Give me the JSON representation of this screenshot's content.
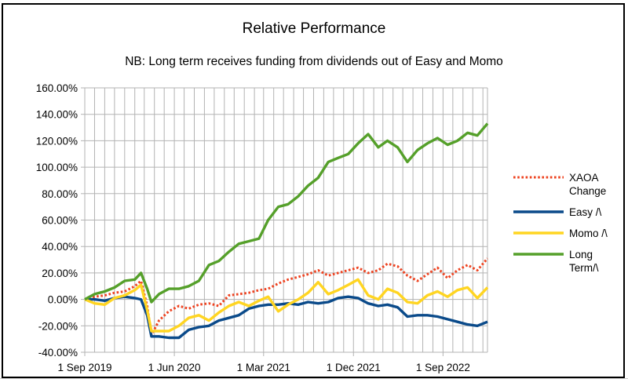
{
  "chart_data": {
    "type": "line",
    "title": "Relative Performance",
    "subtitle": "NB: Long term receives funding from dividends out of Easy and Momo",
    "xlabel": "",
    "ylabel": "",
    "x_ticks": [
      "1 Sep 2019",
      "1 Jun 2020",
      "1 Mar 2021",
      "1 Dec 2021",
      "1 Sep 2022"
    ],
    "y_ticks": [
      "160.00%",
      "140.00%",
      "120.00%",
      "100.00%",
      "80.00%",
      "60.00%",
      "40.00%",
      "20.00%",
      "0.00%",
      "-20.00%",
      "-40.00%"
    ],
    "ylim": [
      -40,
      160
    ],
    "xlim": [
      "2019-09-01",
      "2023-01-15"
    ],
    "grid": true,
    "legend_position": "right",
    "series": [
      {
        "name": "XAOA Change",
        "color": "#ee4422",
        "style": "dotted",
        "points": [
          [
            "2019-09-01",
            0
          ],
          [
            "2019-10-01",
            2
          ],
          [
            "2019-11-01",
            3
          ],
          [
            "2019-12-01",
            5
          ],
          [
            "2020-01-01",
            6
          ],
          [
            "2020-02-01",
            10
          ],
          [
            "2020-02-20",
            14
          ],
          [
            "2020-03-10",
            -5
          ],
          [
            "2020-03-23",
            -27
          ],
          [
            "2020-04-15",
            -16
          ],
          [
            "2020-05-15",
            -9
          ],
          [
            "2020-06-15",
            -5
          ],
          [
            "2020-07-15",
            -7
          ],
          [
            "2020-08-15",
            -4
          ],
          [
            "2020-09-15",
            -3
          ],
          [
            "2020-10-15",
            -5
          ],
          [
            "2020-11-15",
            3
          ],
          [
            "2020-12-15",
            4
          ],
          [
            "2021-01-15",
            5
          ],
          [
            "2021-02-15",
            7
          ],
          [
            "2021-03-15",
            8
          ],
          [
            "2021-04-15",
            12
          ],
          [
            "2021-05-15",
            15
          ],
          [
            "2021-06-15",
            17
          ],
          [
            "2021-07-15",
            19
          ],
          [
            "2021-08-15",
            22
          ],
          [
            "2021-09-15",
            18
          ],
          [
            "2021-10-15",
            20
          ],
          [
            "2021-11-15",
            22
          ],
          [
            "2021-12-15",
            24
          ],
          [
            "2022-01-15",
            20
          ],
          [
            "2022-02-15",
            22
          ],
          [
            "2022-03-15",
            27
          ],
          [
            "2022-04-15",
            25
          ],
          [
            "2022-05-15",
            18
          ],
          [
            "2022-06-15",
            14
          ],
          [
            "2022-07-15",
            19
          ],
          [
            "2022-08-15",
            24
          ],
          [
            "2022-09-15",
            16
          ],
          [
            "2022-10-15",
            22
          ],
          [
            "2022-11-15",
            26
          ],
          [
            "2022-12-15",
            22
          ],
          [
            "2023-01-15",
            31
          ]
        ]
      },
      {
        "name": "Easy /\\",
        "color": "#0a4a8a",
        "style": "solid",
        "points": [
          [
            "2019-09-01",
            0
          ],
          [
            "2019-10-01",
            0
          ],
          [
            "2019-11-01",
            -1
          ],
          [
            "2019-12-01",
            1
          ],
          [
            "2020-01-01",
            2
          ],
          [
            "2020-02-01",
            1
          ],
          [
            "2020-02-20",
            0
          ],
          [
            "2020-03-10",
            -12
          ],
          [
            "2020-03-23",
            -28
          ],
          [
            "2020-04-15",
            -28
          ],
          [
            "2020-05-15",
            -29
          ],
          [
            "2020-06-15",
            -29
          ],
          [
            "2020-07-15",
            -23
          ],
          [
            "2020-08-15",
            -21
          ],
          [
            "2020-09-15",
            -20
          ],
          [
            "2020-10-15",
            -16
          ],
          [
            "2020-11-15",
            -14
          ],
          [
            "2020-12-15",
            -12
          ],
          [
            "2021-01-15",
            -7
          ],
          [
            "2021-02-15",
            -5
          ],
          [
            "2021-03-15",
            -4
          ],
          [
            "2021-04-15",
            -4
          ],
          [
            "2021-05-15",
            -3
          ],
          [
            "2021-06-15",
            -4
          ],
          [
            "2021-07-15",
            -2
          ],
          [
            "2021-08-15",
            -3
          ],
          [
            "2021-09-15",
            -2
          ],
          [
            "2021-10-15",
            1
          ],
          [
            "2021-11-15",
            2
          ],
          [
            "2021-12-15",
            1
          ],
          [
            "2022-01-15",
            -3
          ],
          [
            "2022-02-15",
            -5
          ],
          [
            "2022-03-15",
            -4
          ],
          [
            "2022-04-15",
            -6
          ],
          [
            "2022-05-15",
            -13
          ],
          [
            "2022-06-15",
            -12
          ],
          [
            "2022-07-15",
            -12
          ],
          [
            "2022-08-15",
            -13
          ],
          [
            "2022-09-15",
            -15
          ],
          [
            "2022-10-15",
            -17
          ],
          [
            "2022-11-15",
            -19
          ],
          [
            "2022-12-15",
            -20
          ],
          [
            "2023-01-15",
            -17
          ]
        ]
      },
      {
        "name": "Momo /\\",
        "color": "#ffd522",
        "style": "solid",
        "points": [
          [
            "2019-09-01",
            0
          ],
          [
            "2019-10-01",
            -3
          ],
          [
            "2019-11-01",
            -4
          ],
          [
            "2019-12-01",
            1
          ],
          [
            "2020-01-01",
            3
          ],
          [
            "2020-02-01",
            7
          ],
          [
            "2020-02-20",
            11
          ],
          [
            "2020-03-10",
            -8
          ],
          [
            "2020-03-23",
            -24
          ],
          [
            "2020-04-15",
            -24
          ],
          [
            "2020-05-15",
            -24
          ],
          [
            "2020-06-15",
            -20
          ],
          [
            "2020-07-15",
            -14
          ],
          [
            "2020-08-15",
            -12
          ],
          [
            "2020-09-15",
            -16
          ],
          [
            "2020-10-15",
            -10
          ],
          [
            "2020-11-15",
            -5
          ],
          [
            "2020-12-15",
            -2
          ],
          [
            "2021-01-15",
            -5
          ],
          [
            "2021-02-15",
            -1
          ],
          [
            "2021-03-15",
            2
          ],
          [
            "2021-04-15",
            -9
          ],
          [
            "2021-05-15",
            -4
          ],
          [
            "2021-06-15",
            0
          ],
          [
            "2021-07-15",
            5
          ],
          [
            "2021-08-15",
            13
          ],
          [
            "2021-09-15",
            4
          ],
          [
            "2021-10-15",
            7
          ],
          [
            "2021-11-15",
            11
          ],
          [
            "2021-12-15",
            15
          ],
          [
            "2022-01-15",
            3
          ],
          [
            "2022-02-15",
            0
          ],
          [
            "2022-03-15",
            8
          ],
          [
            "2022-04-15",
            5
          ],
          [
            "2022-05-15",
            -2
          ],
          [
            "2022-06-15",
            -3
          ],
          [
            "2022-07-15",
            3
          ],
          [
            "2022-08-15",
            6
          ],
          [
            "2022-09-15",
            2
          ],
          [
            "2022-10-15",
            7
          ],
          [
            "2022-11-15",
            9
          ],
          [
            "2022-12-15",
            1
          ],
          [
            "2023-01-15",
            9
          ]
        ]
      },
      {
        "name": "Long Term/\\",
        "color": "#55a02a",
        "style": "solid",
        "points": [
          [
            "2019-09-01",
            0
          ],
          [
            "2019-10-01",
            4
          ],
          [
            "2019-11-01",
            6
          ],
          [
            "2019-12-01",
            9
          ],
          [
            "2020-01-01",
            14
          ],
          [
            "2020-02-01",
            15
          ],
          [
            "2020-02-20",
            20
          ],
          [
            "2020-03-10",
            8
          ],
          [
            "2020-03-23",
            -2
          ],
          [
            "2020-04-15",
            4
          ],
          [
            "2020-05-15",
            8
          ],
          [
            "2020-06-15",
            8
          ],
          [
            "2020-07-15",
            10
          ],
          [
            "2020-08-15",
            14
          ],
          [
            "2020-09-15",
            26
          ],
          [
            "2020-10-15",
            29
          ],
          [
            "2020-11-15",
            36
          ],
          [
            "2020-12-15",
            42
          ],
          [
            "2021-01-15",
            44
          ],
          [
            "2021-02-15",
            46
          ],
          [
            "2021-03-15",
            60
          ],
          [
            "2021-04-15",
            70
          ],
          [
            "2021-05-15",
            72
          ],
          [
            "2021-06-15",
            78
          ],
          [
            "2021-07-15",
            86
          ],
          [
            "2021-08-15",
            92
          ],
          [
            "2021-09-15",
            104
          ],
          [
            "2021-10-15",
            107
          ],
          [
            "2021-11-15",
            110
          ],
          [
            "2021-12-15",
            118
          ],
          [
            "2022-01-15",
            125
          ],
          [
            "2022-02-15",
            115
          ],
          [
            "2022-03-15",
            120
          ],
          [
            "2022-04-15",
            115
          ],
          [
            "2022-05-15",
            104
          ],
          [
            "2022-06-15",
            113
          ],
          [
            "2022-07-15",
            118
          ],
          [
            "2022-08-15",
            122
          ],
          [
            "2022-09-15",
            117
          ],
          [
            "2022-10-15",
            120
          ],
          [
            "2022-11-15",
            126
          ],
          [
            "2022-12-15",
            124
          ],
          [
            "2023-01-15",
            133
          ]
        ]
      }
    ]
  },
  "legend": [
    {
      "lines": [
        "XAOA",
        "Change"
      ]
    },
    {
      "lines": [
        "Easy /\\"
      ]
    },
    {
      "lines": [
        "Momo /\\"
      ]
    },
    {
      "lines": [
        "Long",
        "Term/\\"
      ]
    }
  ]
}
